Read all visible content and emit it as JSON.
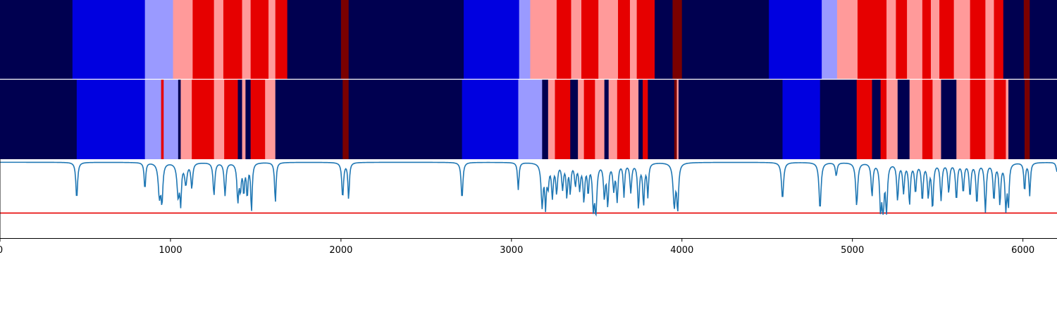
{
  "chart_data": {
    "type": "heatmap",
    "x_range": [
      0,
      6200
    ],
    "x_ticks": [
      0,
      1000,
      2000,
      3000,
      4000,
      5000,
      6000
    ],
    "x_tick_labels": [
      "0",
      "1000",
      "2000",
      "3000",
      "4000",
      "5000",
      "6000"
    ],
    "colors": {
      "dark_navy": "#000050",
      "blue": "#0000e0",
      "light_blue": "#9a9aff",
      "pink": "#ff9a9a",
      "red": "#e60000",
      "dark_red": "#7a0000",
      "line": "#1f77b4",
      "threshold_line": "#e60000"
    },
    "band_top": [
      {
        "start": 0,
        "end": 425,
        "color": "dark_navy"
      },
      {
        "start": 425,
        "end": 850,
        "color": "blue"
      },
      {
        "start": 850,
        "end": 1015,
        "color": "light_blue"
      },
      {
        "start": 1015,
        "end": 1130,
        "color": "pink"
      },
      {
        "start": 1130,
        "end": 1255,
        "color": "red"
      },
      {
        "start": 1255,
        "end": 1310,
        "color": "pink"
      },
      {
        "start": 1310,
        "end": 1420,
        "color": "red"
      },
      {
        "start": 1420,
        "end": 1470,
        "color": "pink"
      },
      {
        "start": 1470,
        "end": 1575,
        "color": "red"
      },
      {
        "start": 1575,
        "end": 1615,
        "color": "pink"
      },
      {
        "start": 1615,
        "end": 1685,
        "color": "red"
      },
      {
        "start": 1685,
        "end": 2000,
        "color": "dark_navy"
      },
      {
        "start": 2000,
        "end": 2045,
        "color": "dark_red"
      },
      {
        "start": 2045,
        "end": 2720,
        "color": "dark_navy"
      },
      {
        "start": 2720,
        "end": 3045,
        "color": "blue"
      },
      {
        "start": 3045,
        "end": 3110,
        "color": "light_blue"
      },
      {
        "start": 3110,
        "end": 3265,
        "color": "pink"
      },
      {
        "start": 3265,
        "end": 3350,
        "color": "red"
      },
      {
        "start": 3350,
        "end": 3410,
        "color": "pink"
      },
      {
        "start": 3410,
        "end": 3510,
        "color": "red"
      },
      {
        "start": 3510,
        "end": 3625,
        "color": "pink"
      },
      {
        "start": 3625,
        "end": 3695,
        "color": "red"
      },
      {
        "start": 3695,
        "end": 3735,
        "color": "pink"
      },
      {
        "start": 3735,
        "end": 3840,
        "color": "red"
      },
      {
        "start": 3840,
        "end": 3945,
        "color": "dark_navy"
      },
      {
        "start": 3945,
        "end": 4000,
        "color": "dark_red"
      },
      {
        "start": 4000,
        "end": 4510,
        "color": "dark_navy"
      },
      {
        "start": 4510,
        "end": 4820,
        "color": "blue"
      },
      {
        "start": 4820,
        "end": 4910,
        "color": "light_blue"
      },
      {
        "start": 4910,
        "end": 5030,
        "color": "pink"
      },
      {
        "start": 5030,
        "end": 5200,
        "color": "red"
      },
      {
        "start": 5200,
        "end": 5255,
        "color": "pink"
      },
      {
        "start": 5255,
        "end": 5320,
        "color": "red"
      },
      {
        "start": 5320,
        "end": 5410,
        "color": "pink"
      },
      {
        "start": 5410,
        "end": 5460,
        "color": "red"
      },
      {
        "start": 5460,
        "end": 5510,
        "color": "pink"
      },
      {
        "start": 5510,
        "end": 5595,
        "color": "red"
      },
      {
        "start": 5595,
        "end": 5690,
        "color": "pink"
      },
      {
        "start": 5690,
        "end": 5780,
        "color": "red"
      },
      {
        "start": 5780,
        "end": 5830,
        "color": "pink"
      },
      {
        "start": 5830,
        "end": 5885,
        "color": "red"
      },
      {
        "start": 5885,
        "end": 6005,
        "color": "dark_navy"
      },
      {
        "start": 6005,
        "end": 6040,
        "color": "dark_red"
      },
      {
        "start": 6040,
        "end": 6200,
        "color": "dark_navy"
      }
    ],
    "band_bottom": [
      {
        "start": 0,
        "end": 450,
        "color": "dark_navy"
      },
      {
        "start": 450,
        "end": 850,
        "color": "blue"
      },
      {
        "start": 850,
        "end": 945,
        "color": "light_blue"
      },
      {
        "start": 945,
        "end": 960,
        "color": "red"
      },
      {
        "start": 960,
        "end": 1045,
        "color": "light_blue"
      },
      {
        "start": 1045,
        "end": 1060,
        "color": "dark_navy"
      },
      {
        "start": 1060,
        "end": 1125,
        "color": "pink"
      },
      {
        "start": 1125,
        "end": 1255,
        "color": "red"
      },
      {
        "start": 1255,
        "end": 1315,
        "color": "pink"
      },
      {
        "start": 1315,
        "end": 1395,
        "color": "red"
      },
      {
        "start": 1395,
        "end": 1420,
        "color": "dark_navy"
      },
      {
        "start": 1420,
        "end": 1440,
        "color": "pink"
      },
      {
        "start": 1440,
        "end": 1470,
        "color": "dark_navy"
      },
      {
        "start": 1470,
        "end": 1555,
        "color": "red"
      },
      {
        "start": 1555,
        "end": 1615,
        "color": "pink"
      },
      {
        "start": 1615,
        "end": 2010,
        "color": "dark_navy"
      },
      {
        "start": 2010,
        "end": 2045,
        "color": "dark_red"
      },
      {
        "start": 2045,
        "end": 2710,
        "color": "dark_navy"
      },
      {
        "start": 2710,
        "end": 3040,
        "color": "blue"
      },
      {
        "start": 3040,
        "end": 3180,
        "color": "light_blue"
      },
      {
        "start": 3180,
        "end": 3215,
        "color": "dark_navy"
      },
      {
        "start": 3215,
        "end": 3255,
        "color": "pink"
      },
      {
        "start": 3255,
        "end": 3345,
        "color": "red"
      },
      {
        "start": 3345,
        "end": 3390,
        "color": "dark_navy"
      },
      {
        "start": 3390,
        "end": 3425,
        "color": "pink"
      },
      {
        "start": 3425,
        "end": 3490,
        "color": "red"
      },
      {
        "start": 3490,
        "end": 3545,
        "color": "pink"
      },
      {
        "start": 3545,
        "end": 3570,
        "color": "dark_navy"
      },
      {
        "start": 3570,
        "end": 3620,
        "color": "pink"
      },
      {
        "start": 3620,
        "end": 3695,
        "color": "red"
      },
      {
        "start": 3695,
        "end": 3745,
        "color": "pink"
      },
      {
        "start": 3745,
        "end": 3770,
        "color": "dark_navy"
      },
      {
        "start": 3770,
        "end": 3800,
        "color": "red"
      },
      {
        "start": 3800,
        "end": 3955,
        "color": "dark_navy"
      },
      {
        "start": 3955,
        "end": 3970,
        "color": "dark_red"
      },
      {
        "start": 3970,
        "end": 3980,
        "color": "pink"
      },
      {
        "start": 3980,
        "end": 4590,
        "color": "dark_navy"
      },
      {
        "start": 4590,
        "end": 4810,
        "color": "blue"
      },
      {
        "start": 4810,
        "end": 5025,
        "color": "dark_navy"
      },
      {
        "start": 5025,
        "end": 5115,
        "color": "red"
      },
      {
        "start": 5115,
        "end": 5165,
        "color": "dark_navy"
      },
      {
        "start": 5165,
        "end": 5200,
        "color": "red"
      },
      {
        "start": 5200,
        "end": 5265,
        "color": "pink"
      },
      {
        "start": 5265,
        "end": 5335,
        "color": "dark_navy"
      },
      {
        "start": 5335,
        "end": 5410,
        "color": "pink"
      },
      {
        "start": 5410,
        "end": 5470,
        "color": "red"
      },
      {
        "start": 5470,
        "end": 5520,
        "color": "pink"
      },
      {
        "start": 5520,
        "end": 5610,
        "color": "dark_navy"
      },
      {
        "start": 5610,
        "end": 5690,
        "color": "pink"
      },
      {
        "start": 5690,
        "end": 5780,
        "color": "red"
      },
      {
        "start": 5780,
        "end": 5830,
        "color": "pink"
      },
      {
        "start": 5830,
        "end": 5900,
        "color": "red"
      },
      {
        "start": 5900,
        "end": 5915,
        "color": "pink"
      },
      {
        "start": 5915,
        "end": 6010,
        "color": "dark_navy"
      },
      {
        "start": 6010,
        "end": 6040,
        "color": "dark_red"
      },
      {
        "start": 6040,
        "end": 6200,
        "color": "dark_navy"
      }
    ],
    "line_series": {
      "y_range": [
        0,
        1
      ],
      "baseline": 0.97,
      "threshold": 0.32,
      "dips": [
        [
          450,
          0.5,
          6
        ],
        [
          850,
          0.62,
          5
        ],
        [
          935,
          0.55,
          8
        ],
        [
          950,
          0.5,
          6
        ],
        [
          1045,
          0.55,
          8
        ],
        [
          1060,
          0.5,
          5
        ],
        [
          1090,
          0.7,
          8
        ],
        [
          1125,
          0.65,
          6
        ],
        [
          1255,
          0.55,
          6
        ],
        [
          1320,
          0.55,
          6
        ],
        [
          1395,
          0.5,
          6
        ],
        [
          1410,
          0.65,
          6
        ],
        [
          1430,
          0.6,
          5
        ],
        [
          1450,
          0.55,
          5
        ],
        [
          1475,
          0.35,
          5
        ],
        [
          1615,
          0.45,
          5
        ],
        [
          2010,
          0.52,
          6
        ],
        [
          2045,
          0.5,
          5
        ],
        [
          2710,
          0.5,
          6
        ],
        [
          3040,
          0.62,
          5
        ],
        [
          3180,
          0.42,
          7
        ],
        [
          3200,
          0.45,
          5
        ],
        [
          3215,
          0.7,
          6
        ],
        [
          3240,
          0.55,
          6
        ],
        [
          3265,
          0.6,
          6
        ],
        [
          3300,
          0.65,
          6
        ],
        [
          3325,
          0.55,
          5
        ],
        [
          3345,
          0.6,
          5
        ],
        [
          3375,
          0.7,
          6
        ],
        [
          3400,
          0.65,
          6
        ],
        [
          3425,
          0.5,
          6
        ],
        [
          3450,
          0.6,
          5
        ],
        [
          3480,
          0.45,
          6
        ],
        [
          3495,
          0.35,
          7
        ],
        [
          3545,
          0.55,
          6
        ],
        [
          3565,
          0.45,
          6
        ],
        [
          3600,
          0.65,
          6
        ],
        [
          3620,
          0.5,
          6
        ],
        [
          3660,
          0.55,
          5
        ],
        [
          3700,
          0.6,
          6
        ],
        [
          3745,
          0.4,
          6
        ],
        [
          3775,
          0.45,
          6
        ],
        [
          3800,
          0.55,
          5
        ],
        [
          3955,
          0.42,
          8
        ],
        [
          3975,
          0.4,
          6
        ],
        [
          4590,
          0.5,
          7
        ],
        [
          4810,
          0.37,
          7
        ],
        [
          4905,
          0.8,
          6
        ],
        [
          5025,
          0.42,
          7
        ],
        [
          5115,
          0.55,
          6
        ],
        [
          5165,
          0.4,
          6
        ],
        [
          5180,
          0.33,
          6
        ],
        [
          5200,
          0.35,
          6
        ],
        [
          5265,
          0.5,
          6
        ],
        [
          5300,
          0.6,
          6
        ],
        [
          5335,
          0.45,
          6
        ],
        [
          5370,
          0.6,
          6
        ],
        [
          5410,
          0.5,
          6
        ],
        [
          5445,
          0.55,
          6
        ],
        [
          5470,
          0.4,
          6
        ],
        [
          5520,
          0.5,
          6
        ],
        [
          5565,
          0.6,
          6
        ],
        [
          5610,
          0.5,
          6
        ],
        [
          5650,
          0.6,
          6
        ],
        [
          5690,
          0.55,
          6
        ],
        [
          5730,
          0.45,
          6
        ],
        [
          5780,
          0.35,
          6
        ],
        [
          5830,
          0.5,
          6
        ],
        [
          5865,
          0.45,
          6
        ],
        [
          5900,
          0.4,
          6
        ],
        [
          5915,
          0.45,
          5
        ],
        [
          6010,
          0.6,
          5
        ],
        [
          6040,
          0.55,
          5
        ],
        [
          6200,
          0.85,
          6
        ]
      ]
    }
  }
}
